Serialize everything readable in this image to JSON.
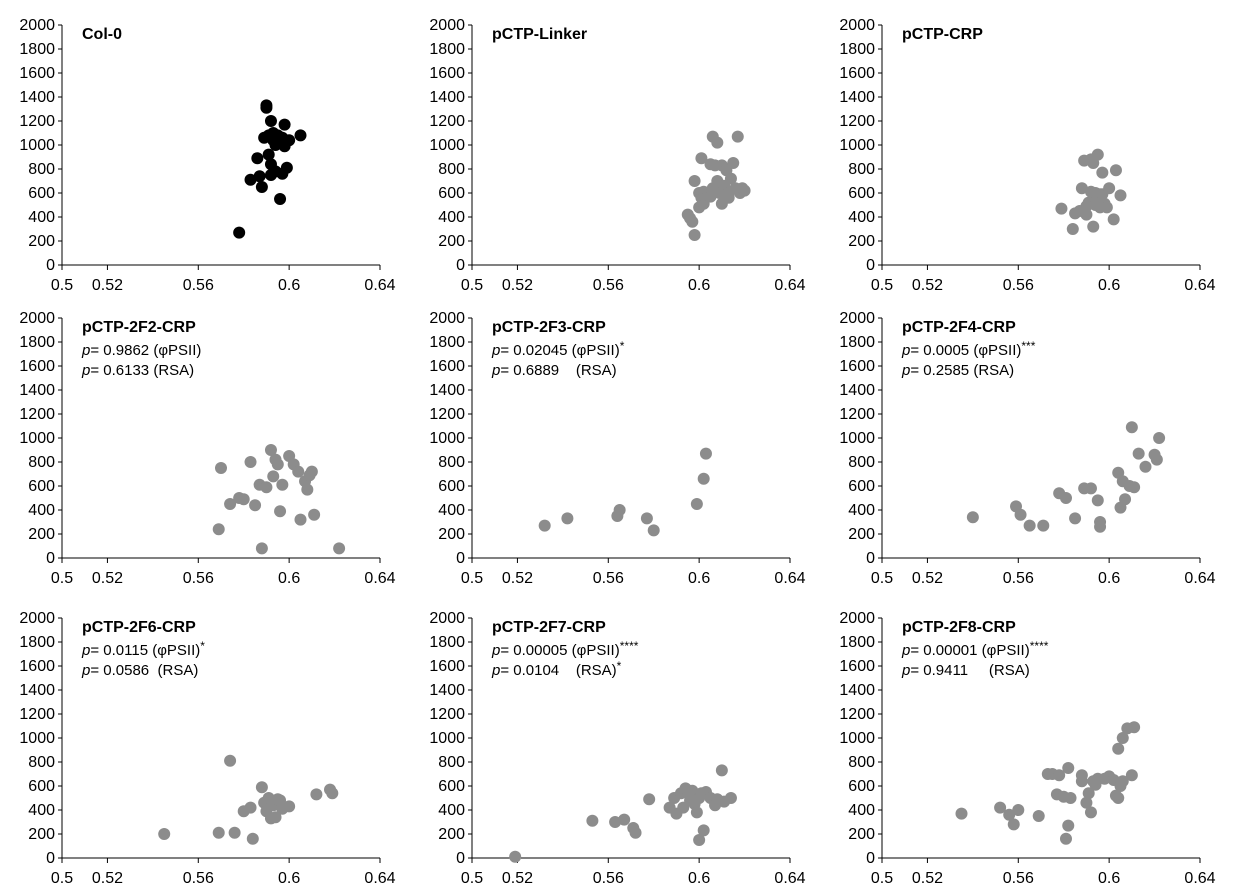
{
  "figure": {
    "axes": {
      "xlim": [
        0.5,
        0.64
      ],
      "ylim": [
        0,
        2000
      ],
      "xticks": [
        0.5,
        0.52,
        0.56,
        0.6,
        0.64
      ],
      "xtick_labels": [
        "0.5",
        "0.52",
        "0.56",
        "0.6",
        "0.64"
      ],
      "yticks": [
        0,
        200,
        400,
        600,
        800,
        1000,
        1200,
        1400,
        1600,
        1800,
        2000
      ],
      "ytick_labels": [
        "0",
        "200",
        "400",
        "600",
        "800",
        "1000",
        "1200",
        "1400",
        "1600",
        "1800",
        "2000"
      ],
      "grid": false
    },
    "colors": {
      "col0_points": "#000000",
      "line_points": "#8c8c8c",
      "axis": "#000000"
    }
  },
  "chart_data": [
    {
      "type": "scatter",
      "title": "Col-0",
      "stats": [],
      "color": "#000000",
      "x": [
        0.578,
        0.583,
        0.586,
        0.587,
        0.588,
        0.589,
        0.59,
        0.59,
        0.591,
        0.591,
        0.592,
        0.592,
        0.592,
        0.593,
        0.593,
        0.594,
        0.594,
        0.595,
        0.596,
        0.596,
        0.597,
        0.597,
        0.598,
        0.598,
        0.599,
        0.6,
        0.605
      ],
      "y": [
        270,
        710,
        890,
        740,
        650,
        1060,
        1310,
        1330,
        1080,
        920,
        750,
        1200,
        840,
        1040,
        1100,
        1000,
        780,
        1080,
        1050,
        550,
        760,
        1060,
        1170,
        990,
        810,
        1040,
        1080
      ]
    },
    {
      "type": "scatter",
      "title": "pCTP-Linker",
      "stats": [],
      "color": "#8c8c8c",
      "x": [
        0.595,
        0.596,
        0.597,
        0.598,
        0.598,
        0.6,
        0.6,
        0.601,
        0.601,
        0.602,
        0.602,
        0.603,
        0.604,
        0.605,
        0.605,
        0.606,
        0.606,
        0.607,
        0.608,
        0.608,
        0.609,
        0.61,
        0.61,
        0.611,
        0.612,
        0.613,
        0.613,
        0.614,
        0.615,
        0.616,
        0.617,
        0.618,
        0.619,
        0.62
      ],
      "y": [
        420,
        390,
        360,
        250,
        700,
        600,
        480,
        560,
        890,
        510,
        610,
        560,
        580,
        840,
        570,
        1070,
        640,
        830,
        700,
        1020,
        600,
        510,
        830,
        660,
        790,
        560,
        600,
        720,
        850,
        640,
        1070,
        600,
        640,
        620
      ]
    },
    {
      "type": "scatter",
      "title": "pCTP-CRP",
      "stats": [],
      "color": "#8c8c8c",
      "x": [
        0.579,
        0.584,
        0.585,
        0.587,
        0.588,
        0.589,
        0.59,
        0.59,
        0.591,
        0.592,
        0.592,
        0.593,
        0.593,
        0.594,
        0.594,
        0.595,
        0.595,
        0.596,
        0.596,
        0.597,
        0.597,
        0.598,
        0.599,
        0.6,
        0.602,
        0.603,
        0.605
      ],
      "y": [
        470,
        300,
        430,
        450,
        640,
        870,
        490,
        420,
        520,
        880,
        610,
        850,
        320,
        600,
        500,
        920,
        560,
        590,
        480,
        770,
        590,
        510,
        480,
        640,
        380,
        790,
        580
      ]
    },
    {
      "type": "scatter",
      "title": "pCTP-2F2-CRP",
      "color": "#8c8c8c",
      "stats": [
        {
          "prefix": "p",
          "text": "= 0.9862 (φPSII)",
          "stars": ""
        },
        {
          "prefix": "p",
          "text": "= 0.6133 (RSA)",
          "stars": ""
        }
      ],
      "x": [
        0.569,
        0.57,
        0.574,
        0.578,
        0.58,
        0.583,
        0.585,
        0.587,
        0.588,
        0.59,
        0.592,
        0.593,
        0.594,
        0.595,
        0.596,
        0.597,
        0.6,
        0.602,
        0.604,
        0.605,
        0.607,
        0.608,
        0.609,
        0.61,
        0.611,
        0.622
      ],
      "y": [
        240,
        750,
        450,
        500,
        490,
        800,
        440,
        610,
        80,
        590,
        900,
        680,
        820,
        780,
        390,
        610,
        850,
        780,
        720,
        320,
        640,
        570,
        690,
        720,
        360,
        80
      ]
    },
    {
      "type": "scatter",
      "title": "pCTP-2F3-CRP",
      "color": "#8c8c8c",
      "stats": [
        {
          "prefix": "p",
          "text": "= 0.02045 (φPSII)",
          "stars": "*"
        },
        {
          "prefix": "p",
          "text": "= 0.6889    (RSA)",
          "stars": ""
        }
      ],
      "x": [
        0.532,
        0.542,
        0.564,
        0.565,
        0.577,
        0.58,
        0.599,
        0.602,
        0.603
      ],
      "y": [
        270,
        330,
        350,
        400,
        330,
        230,
        450,
        660,
        870
      ]
    },
    {
      "type": "scatter",
      "title": "pCTP-2F4-CRP",
      "color": "#8c8c8c",
      "stats": [
        {
          "prefix": "p",
          "text": "= 0.0005 (φPSII)",
          "stars": "***"
        },
        {
          "prefix": "p",
          "text": "= 0.2585 (RSA)",
          "stars": ""
        }
      ],
      "x": [
        0.54,
        0.559,
        0.561,
        0.565,
        0.571,
        0.578,
        0.581,
        0.585,
        0.589,
        0.592,
        0.595,
        0.596,
        0.596,
        0.604,
        0.605,
        0.606,
        0.607,
        0.609,
        0.61,
        0.611,
        0.613,
        0.616,
        0.62,
        0.621,
        0.622
      ],
      "y": [
        340,
        430,
        360,
        270,
        270,
        540,
        500,
        330,
        580,
        580,
        480,
        300,
        260,
        710,
        420,
        640,
        490,
        600,
        1090,
        590,
        870,
        760,
        860,
        820,
        1000
      ]
    },
    {
      "type": "scatter",
      "title": "pCTP-2F6-CRP",
      "color": "#8c8c8c",
      "stats": [
        {
          "prefix": "p",
          "text": "= 0.0115 (φPSII)",
          "stars": "*"
        },
        {
          "prefix": "p",
          "text": "= 0.0586  (RSA)",
          "stars": ""
        }
      ],
      "x": [
        0.545,
        0.569,
        0.574,
        0.576,
        0.58,
        0.583,
        0.584,
        0.588,
        0.589,
        0.59,
        0.591,
        0.592,
        0.593,
        0.594,
        0.595,
        0.596,
        0.597,
        0.6,
        0.612,
        0.618,
        0.619
      ],
      "y": [
        200,
        210,
        810,
        210,
        390,
        420,
        160,
        590,
        460,
        390,
        500,
        330,
        440,
        340,
        490,
        480,
        410,
        430,
        530,
        570,
        540
      ]
    },
    {
      "type": "scatter",
      "title": "pCTP-2F7-CRP",
      "color": "#8c8c8c",
      "stats": [
        {
          "prefix": "p",
          "text": "= 0.00005 (φPSII)",
          "stars": "****"
        },
        {
          "prefix": "p",
          "text": "= 0.0104    (RSA)",
          "stars": "*"
        }
      ],
      "x": [
        0.519,
        0.553,
        0.563,
        0.567,
        0.571,
        0.572,
        0.578,
        0.587,
        0.589,
        0.59,
        0.592,
        0.593,
        0.594,
        0.596,
        0.596,
        0.597,
        0.598,
        0.599,
        0.6,
        0.6,
        0.601,
        0.602,
        0.603,
        0.605,
        0.607,
        0.608,
        0.61,
        0.611,
        0.614
      ],
      "y": [
        10,
        310,
        300,
        320,
        250,
        210,
        490,
        420,
        500,
        370,
        540,
        420,
        580,
        480,
        520,
        560,
        450,
        380,
        500,
        150,
        540,
        230,
        550,
        500,
        440,
        490,
        730,
        470,
        500
      ]
    },
    {
      "type": "scatter",
      "title": "pCTP-2F8-CRP",
      "color": "#8c8c8c",
      "stats": [
        {
          "prefix": "p",
          "text": "= 0.00001 (φPSII)",
          "stars": "****"
        },
        {
          "prefix": "p",
          "text": "= 0.9411     (RSA)",
          "stars": ""
        }
      ],
      "x": [
        0.535,
        0.552,
        0.556,
        0.558,
        0.56,
        0.569,
        0.573,
        0.575,
        0.577,
        0.578,
        0.58,
        0.581,
        0.582,
        0.582,
        0.583,
        0.588,
        0.588,
        0.59,
        0.591,
        0.592,
        0.593,
        0.594,
        0.595,
        0.598,
        0.6,
        0.602,
        0.603,
        0.604,
        0.604,
        0.605,
        0.606,
        0.606,
        0.608,
        0.61,
        0.611
      ],
      "y": [
        370,
        420,
        360,
        280,
        400,
        350,
        700,
        700,
        530,
        690,
        510,
        160,
        750,
        270,
        500,
        690,
        640,
        460,
        540,
        380,
        640,
        610,
        660,
        660,
        680,
        650,
        520,
        500,
        910,
        600,
        1000,
        640,
        1080,
        690,
        1090
      ]
    }
  ]
}
